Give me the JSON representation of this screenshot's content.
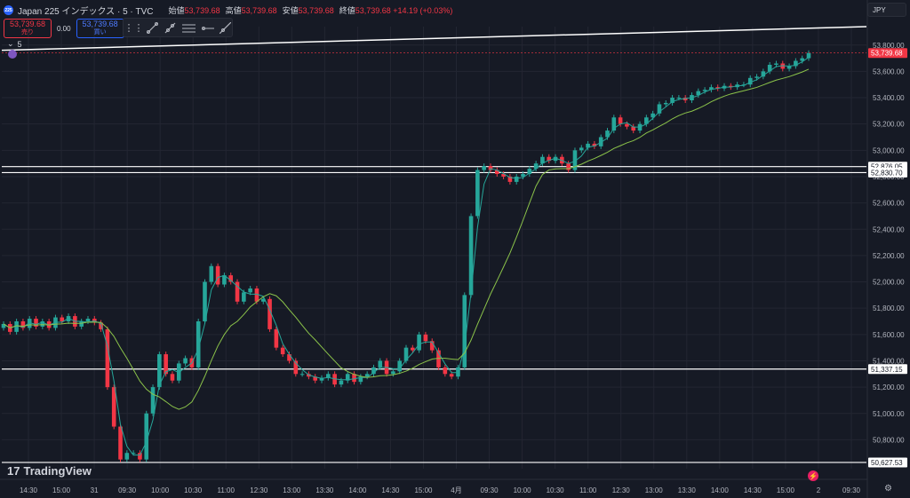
{
  "header": {
    "symbol_logo": "225",
    "symbol_title": "Japan 225 インデックス · 5 · TVC",
    "ohlc": [
      {
        "label": "始値",
        "value": "53,739.68"
      },
      {
        "label": "高値",
        "value": "53,739.68"
      },
      {
        "label": "安値",
        "value": "53,739.68"
      },
      {
        "label": "終値",
        "value": "53,739.68 +14.19 (+0.03%)"
      }
    ]
  },
  "trade": {
    "sell_price": "53,739.68",
    "sell_label": "売り",
    "spread": "0.00",
    "buy_price": "53,739.68",
    "buy_label": "買い"
  },
  "interval": {
    "chevron": "⌄",
    "value": "5"
  },
  "currency": "JPY",
  "branding": {
    "name": "TradingView",
    "mark": "17"
  },
  "colors": {
    "up": "#26a69a",
    "down": "#f23645",
    "bg": "#161a25",
    "grid": "#232632",
    "text": "#b2b5be",
    "ma_fast": "#26a69a",
    "ma_slow": "#8bc34a"
  },
  "chart_data": {
    "type": "candlestick",
    "ylim": [
      50580,
      53940
    ],
    "y_ticks": [
      53800,
      53600,
      53400,
      53200,
      53000,
      52800,
      52600,
      52400,
      52200,
      52000,
      51800,
      51600,
      51400,
      51200,
      51000,
      50800
    ],
    "y_tick_labels": [
      "53,800.00",
      "53,600.00",
      "53,400.00",
      "53,200.00",
      "53,000.00",
      "52,800.00",
      "52,600.00",
      "52,400.00",
      "52,200.00",
      "52,000.00",
      "51,800.00",
      "51,600.00",
      "51,400.00",
      "51,200.00",
      "51,000.00",
      "50,800.00"
    ],
    "x_labels": [
      "14:30",
      "15:00",
      "31",
      "09:30",
      "10:00",
      "10:30",
      "11:00",
      "12:30",
      "13:00",
      "13:30",
      "14:00",
      "14:30",
      "15:00",
      "4月",
      "09:30",
      "10:00",
      "10:30",
      "11:00",
      "12:30",
      "13:00",
      "13:30",
      "14:00",
      "14:30",
      "15:00",
      "2",
      "09:30"
    ],
    "horizontal_lines": [
      {
        "value": 52876.05,
        "label": "52,876.05"
      },
      {
        "value": 52830.7,
        "label": "52,830.70"
      },
      {
        "value": 51337.15,
        "label": "51,337.15"
      },
      {
        "value": 50627.53,
        "label": "50,627.53"
      }
    ],
    "trendline": {
      "from": 53760,
      "to": 53940
    },
    "last_price": {
      "value": 53739.68,
      "label": "53,739.68"
    },
    "closes": [
      51680,
      51620,
      51700,
      51650,
      51720,
      51660,
      51700,
      51650,
      51730,
      51700,
      51740,
      51660,
      51700,
      51720,
      51690,
      51640,
      51200,
      50900,
      50650,
      50700,
      50700,
      50650,
      51000,
      51200,
      51450,
      51300,
      51250,
      51380,
      51420,
      51350,
      51700,
      52000,
      52120,
      51980,
      52050,
      52000,
      51850,
      51920,
      51950,
      51850,
      51870,
      51640,
      51500,
      51450,
      51400,
      51300,
      51300,
      51280,
      51250,
      51270,
      51300,
      51220,
      51250,
      51300,
      51240,
      51280,
      51300,
      51350,
      51400,
      51300,
      51320,
      51400,
      51500,
      51480,
      51600,
      51550,
      51480,
      51350,
      51300,
      51280,
      51350,
      51900,
      52500,
      52850,
      52880,
      52850,
      52820,
      52800,
      52760,
      52800,
      52820,
      52860,
      52900,
      52950,
      52920,
      52950,
      52900,
      52850,
      53000,
      53020,
      53050,
      53030,
      53100,
      53150,
      53250,
      53200,
      53180,
      53150,
      53200,
      53250,
      53280,
      53350,
      53360,
      53400,
      53400,
      53380,
      53420,
      53450,
      53460,
      53480,
      53470,
      53490,
      53480,
      53500,
      53500,
      53550,
      53560,
      53600,
      53650,
      53660,
      53620,
      53640,
      53680,
      53700,
      53739.68
    ],
    "series": [
      {
        "name": "MA fast",
        "color": "#26a69a"
      },
      {
        "name": "MA slow",
        "color": "#8bc34a"
      }
    ]
  }
}
